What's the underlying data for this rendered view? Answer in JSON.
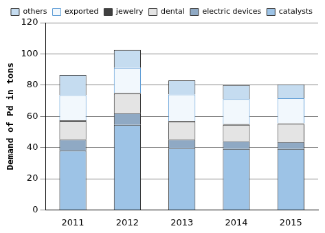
{
  "chart_data": {
    "type": "bar",
    "y_label": "Demand of Pd in tons",
    "categories": [
      "2011",
      "2012",
      "2013",
      "2014",
      "2015"
    ],
    "series": [
      {
        "name": "catalysts",
        "color": "#9dc3e6",
        "values": [
          38,
          54.5,
          39.5,
          39,
          39
        ]
      },
      {
        "name": "electric devices",
        "color": "#8fa9c4",
        "values": [
          7,
          7.5,
          5.5,
          5,
          4.5
        ]
      },
      {
        "name": "dental",
        "color": "#e4e4e4",
        "values": [
          12,
          12.5,
          11.5,
          10.5,
          11.5
        ]
      },
      {
        "name": "jewelry",
        "color": "#404040",
        "values": [
          0.5,
          0.5,
          0.5,
          0.5,
          0.5
        ]
      },
      {
        "name": "exported",
        "color": "#f2f8fd",
        "values": [
          16,
          16,
          17,
          16,
          16
        ]
      },
      {
        "name": "others",
        "color": "#c5dcf0",
        "values": [
          13,
          11.5,
          9,
          9,
          9
        ]
      }
    ],
    "ylim": [
      0,
      120
    ],
    "yticks": [
      0,
      20,
      40,
      60,
      80,
      100,
      120
    ],
    "stacked": true,
    "grid": true,
    "legend": "upper right"
  }
}
